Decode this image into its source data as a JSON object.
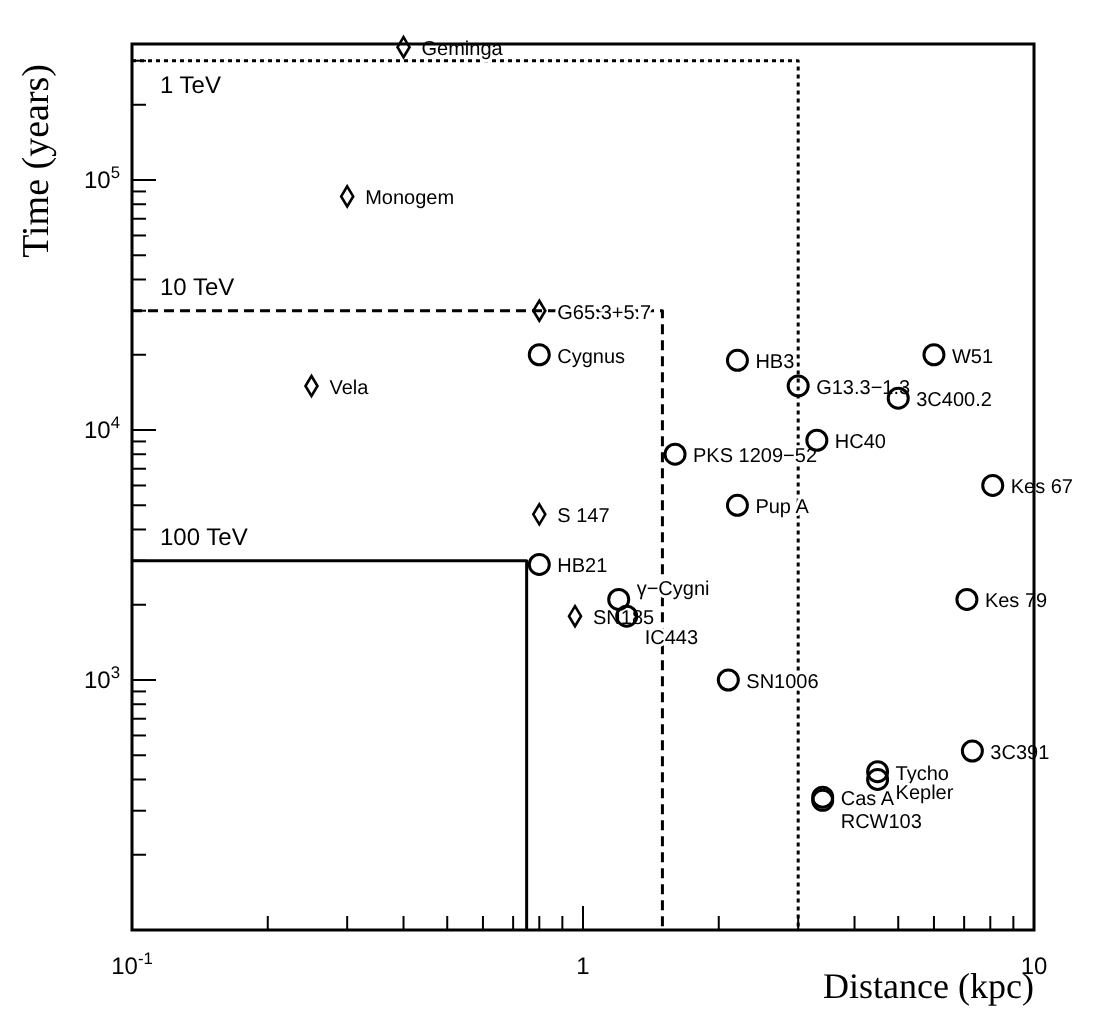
{
  "chart_data": {
    "type": "scatter",
    "xlabel": "Distance (kpc)",
    "ylabel": "Time (years)",
    "log": "xy",
    "grid": false,
    "xlim": [
      0.1,
      10
    ],
    "ylim": [
      100,
      350000
    ],
    "xticks": [
      {
        "value": 0.1,
        "label": "10$^{-1}$"
      },
      {
        "value": 0.2,
        "label": null
      },
      {
        "value": 0.3,
        "label": null
      },
      {
        "value": 0.4,
        "label": null
      },
      {
        "value": 0.5,
        "label": null
      },
      {
        "value": 0.6,
        "label": null
      },
      {
        "value": 0.7,
        "label": null
      },
      {
        "value": 0.8,
        "label": null
      },
      {
        "value": 0.9,
        "label": null
      },
      1,
      {
        "value": 2,
        "label": null
      },
      {
        "value": 3,
        "label": null
      },
      {
        "value": 4,
        "label": null
      },
      {
        "value": 5,
        "label": null
      },
      {
        "value": 6,
        "label": null
      },
      {
        "value": 7,
        "label": null
      },
      {
        "value": 8,
        "label": null
      },
      {
        "value": 9,
        "label": null
      },
      10
    ],
    "yticks": [
      {
        "value": 200,
        "label": null
      },
      {
        "value": 300,
        "label": null
      },
      {
        "value": 400,
        "label": null
      },
      {
        "value": 500,
        "label": null
      },
      {
        "value": 600,
        "label": null
      },
      {
        "value": 700,
        "label": null
      },
      {
        "value": 800,
        "label": null
      },
      {
        "value": 900,
        "label": null
      },
      {
        "value": 1000,
        "label": "10$^{3}$"
      },
      {
        "value": 2000,
        "label": null
      },
      {
        "value": 3000,
        "label": null
      },
      {
        "value": 4000,
        "label": null
      },
      {
        "value": 5000,
        "label": null
      },
      {
        "value": 6000,
        "label": null
      },
      {
        "value": 7000,
        "label": null
      },
      {
        "value": 8000,
        "label": null
      },
      {
        "value": 9000,
        "label": null
      },
      {
        "value": 10000,
        "label": "10$^{4}$"
      },
      {
        "value": 20000,
        "label": null
      },
      {
        "value": 30000,
        "label": null
      },
      {
        "value": 40000,
        "label": null
      },
      {
        "value": 50000,
        "label": null
      },
      {
        "value": 60000,
        "label": null
      },
      {
        "value": 70000,
        "label": null
      },
      {
        "value": 80000,
        "label": null
      },
      {
        "value": 90000,
        "label": null
      },
      {
        "value": 100000,
        "label": "10$^{5}$"
      },
      {
        "value": 200000,
        "label": null
      },
      {
        "value": 300000,
        "label": null
      }
    ],
    "series": [
      {
        "marker": "diamond",
        "color": "#000000",
        "x": [
          0.4,
          0.3,
          0.8,
          0.25,
          0.8,
          0.96
        ],
        "values": [
          340000,
          86000,
          30000,
          15000,
          4600,
          1800
        ]
      },
      {
        "marker": "circle",
        "color": "#000000",
        "x": [
          0.8,
          2.2,
          6.0,
          3.0,
          5.0,
          3.3,
          1.6,
          8.1,
          2.2,
          0.8,
          1.2,
          1.25,
          7.1,
          2.1,
          7.3,
          4.5,
          4.5,
          3.4,
          3.4
        ],
        "values": [
          20000,
          19000,
          20000,
          15000,
          13400,
          9100,
          8000,
          6000,
          5000,
          2900,
          2100,
          1800,
          2100,
          1000,
          520,
          430,
          400,
          340,
          330
        ]
      },
      {
        "type": "line",
        "name": "1 TeV",
        "line_style": "dotted",
        "color": "#000000",
        "x": [
          0.1,
          3,
          3
        ],
        "values": [
          300000,
          300000,
          100
        ]
      },
      {
        "type": "line",
        "name": "10 TeV",
        "line_style": "dashed",
        "color": "#000000",
        "x": [
          0.1,
          1.5,
          1.5
        ],
        "values": [
          30000,
          30000,
          100
        ]
      },
      {
        "type": "line",
        "name": "100 TeV",
        "line_style": "solid",
        "color": "#000000",
        "x": [
          0.1,
          0.75,
          0.75
        ],
        "values": [
          3000,
          3000,
          100
        ]
      }
    ],
    "annotations": [
      {
        "text": "Geminga",
        "x": 0.4,
        "y": 340000
      },
      {
        "text": "Monogem",
        "x": 0.3,
        "y": 86000
      },
      {
        "text": "G65.3+5.7",
        "x": 0.8,
        "y": 30000
      },
      {
        "text": "Vela",
        "x": 0.25,
        "y": 15000
      },
      {
        "text": "S 147",
        "x": 0.8,
        "y": 4600
      },
      {
        "text": "SN185",
        "x": 0.96,
        "y": 1800
      },
      {
        "text": "Cygnus",
        "x": 0.8,
        "y": 20000
      },
      {
        "text": "HB3",
        "x": 2.2,
        "y": 19000
      },
      {
        "text": "W51",
        "x": 6.0,
        "y": 20000
      },
      {
        "text": "G13.3−1.3",
        "x": 3.0,
        "y": 15000
      },
      {
        "text": "3C400.2",
        "x": 5.0,
        "y": 13400
      },
      {
        "text": "HC40",
        "x": 3.3,
        "y": 9100
      },
      {
        "text": "PKS 1209−52",
        "x": 1.6,
        "y": 8000
      },
      {
        "text": "Kes 67",
        "x": 8.1,
        "y": 6000
      },
      {
        "text": "Pup A",
        "x": 2.2,
        "y": 5000
      },
      {
        "text": "HB21",
        "x": 0.8,
        "y": 2900
      },
      {
        "text": "γ−Cygni",
        "x": 1.2,
        "y": 2100
      },
      {
        "text": "IC443",
        "x": 1.25,
        "y": 1800
      },
      {
        "text": "Kes 79",
        "x": 7.1,
        "y": 2100
      },
      {
        "text": "SN1006",
        "x": 2.1,
        "y": 1000
      },
      {
        "text": "3C391",
        "x": 7.3,
        "y": 520
      },
      {
        "text": "Tycho",
        "x": 4.5,
        "y": 430
      },
      {
        "text": "Kepler",
        "x": 4.5,
        "y": 400
      },
      {
        "text": "Cas A",
        "x": 3.4,
        "y": 340
      },
      {
        "text": "RCW103",
        "x": 3.4,
        "y": 330
      }
    ]
  }
}
